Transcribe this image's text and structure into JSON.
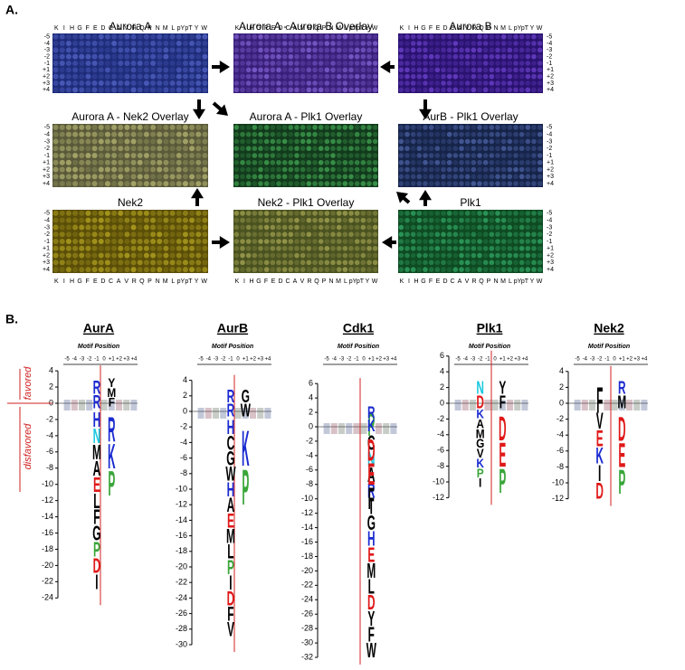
{
  "panel_a": {
    "label": "A.",
    "columns": [
      "K",
      "I",
      "H",
      "G",
      "F",
      "E",
      "D",
      "C",
      "A",
      "V",
      "R",
      "Q",
      "P",
      "N",
      "M",
      "L",
      "pY",
      "pT",
      "Y",
      "W"
    ],
    "rows": [
      "-5",
      "-4",
      "-3",
      "-2",
      "-1",
      "+1",
      "+2",
      "+3",
      "+4"
    ],
    "arrays": [
      {
        "title": "Aurora A"
      },
      {
        "title": "Aurora A - Aurora B Overlay"
      },
      {
        "title": "Aurora B"
      },
      {
        "title": "Aurora A - Nek2 Overlay"
      },
      {
        "title": "Aurora A - Plk1 Overlay"
      },
      {
        "title": "AurB - Plk1 Overlay"
      },
      {
        "title": "Nek2"
      },
      {
        "title": "Nek2 - Plk1 Overlay"
      },
      {
        "title": "Plk1"
      }
    ]
  },
  "panel_b": {
    "label": "B.",
    "axis_title": "Motif Position",
    "positions": [
      "-5",
      "-4",
      "-3",
      "-2",
      "-1",
      "0",
      "+1",
      "+2",
      "+3",
      "+4"
    ],
    "favored": "favored",
    "disfavored": "disfavored",
    "logos": [
      {
        "title": "AurA",
        "yticks": [
          4,
          2,
          0,
          -2,
          -4,
          -6,
          -8,
          -10,
          -12,
          -14,
          -16,
          -18,
          -20,
          -22,
          -24
        ],
        "up": [
          "R",
          "R"
        ],
        "down": [
          "H",
          "N",
          "M",
          "A",
          "E",
          "L",
          "F",
          "G",
          "P",
          "D",
          "I"
        ],
        "right_up": [
          "F",
          "M",
          "Y"
        ],
        "right_down": [
          "R",
          "K",
          "P"
        ]
      },
      {
        "title": "AurB",
        "yticks": [
          4,
          2,
          0,
          -2,
          -4,
          -6,
          -8,
          -10,
          -12,
          -14,
          -16,
          -18,
          -20,
          -22,
          -24,
          -26,
          -28,
          -30
        ],
        "up": [
          "R",
          "R"
        ],
        "down": [
          "H",
          "C",
          "G",
          "W",
          "H",
          "A",
          "E",
          "M",
          "L",
          "P",
          "I",
          "D",
          "F",
          "V"
        ],
        "right_up": [
          "W",
          "G"
        ],
        "right_down": [
          "K",
          "P"
        ]
      },
      {
        "title": "Cdk1",
        "yticks": [
          6,
          4,
          2,
          0,
          -2,
          -4,
          -6,
          -8,
          -10,
          -12,
          -14,
          -16,
          -18,
          -20,
          -22,
          -24,
          -26,
          -28,
          -30,
          -32
        ],
        "up": [
          "P"
        ],
        "down": [
          "C",
          "N",
          "A",
          "R",
          "I",
          "G",
          "H",
          "E",
          "M",
          "L",
          "D",
          "Y",
          "F",
          "W"
        ],
        "right_up": [
          "K",
          "R"
        ],
        "right_down": [
          "D",
          "E",
          "F"
        ]
      },
      {
        "title": "Plk1",
        "yticks": [
          6,
          4,
          2,
          0,
          -2,
          -4,
          -6,
          -8,
          -10,
          -12
        ],
        "up": [
          "D",
          "N"
        ],
        "down": [
          "K",
          "A",
          "M",
          "G",
          "V",
          "K",
          "P",
          "I"
        ],
        "right_up": [
          "F",
          "Y"
        ],
        "right_down": [
          "D",
          "E",
          "P"
        ]
      },
      {
        "title": "Nek2",
        "yticks": [
          4,
          2,
          0,
          -2,
          -4,
          -6,
          -8,
          -10,
          -12
        ],
        "up": [
          "F"
        ],
        "down": [
          "V",
          "E",
          "K",
          "I",
          "D"
        ],
        "right_up": [
          "M",
          "R"
        ],
        "right_down": [
          "D",
          "E",
          "P"
        ]
      }
    ]
  }
}
